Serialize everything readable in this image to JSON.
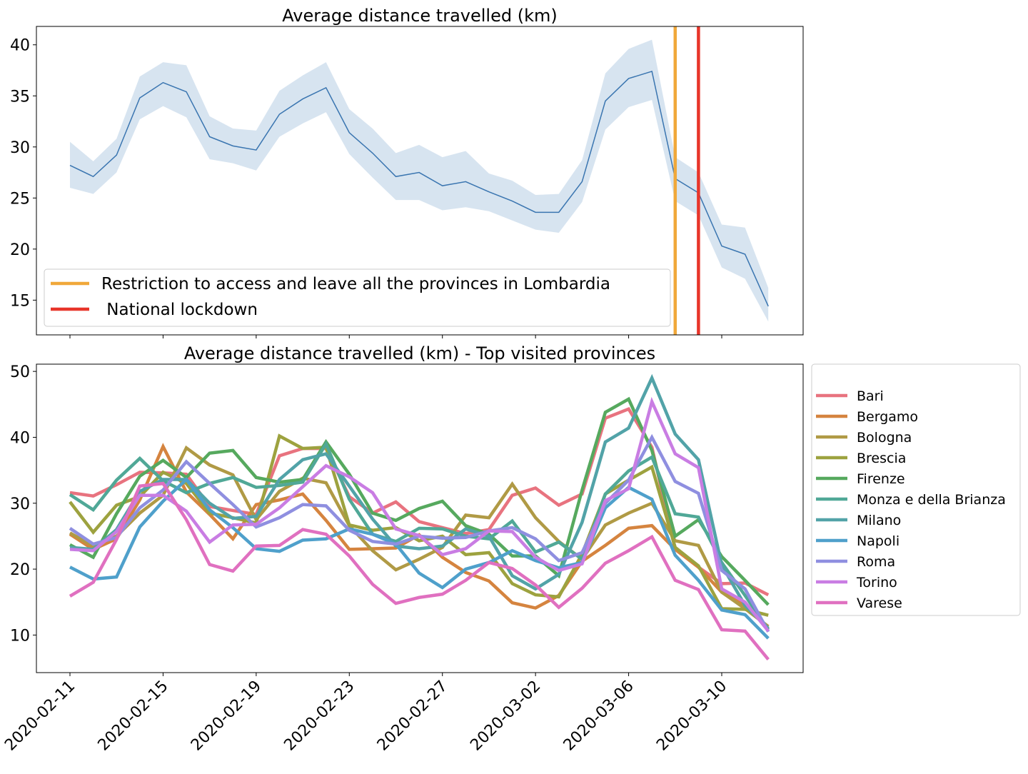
{
  "chart_data": [
    {
      "type": "line",
      "title": "Average distance travelled (km)",
      "x_start": "2020-02-11",
      "x_end": "2020-03-11",
      "x_tick_labels": [
        "2020-02-11",
        "2020-02-15",
        "2020-02-19",
        "2020-02-23",
        "2020-02-27",
        "2020-03-02",
        "2020-03-06",
        "2020-03-10"
      ],
      "ylim": [
        11.6,
        41.8
      ],
      "y_ticks": [
        15,
        20,
        25,
        30,
        35,
        40
      ],
      "grid": false,
      "line_color": "#3a75b0",
      "band_color": "#d5e3ef",
      "values": [
        28.2,
        27.1,
        29.2,
        34.8,
        36.3,
        35.4,
        31.0,
        30.1,
        29.7,
        33.2,
        34.7,
        35.8,
        31.4,
        29.4,
        27.1,
        27.5,
        26.2,
        26.6,
        25.6,
        24.7,
        23.6,
        23.6,
        26.6,
        34.5,
        36.7,
        37.4,
        26.9,
        25.5,
        20.3,
        19.5,
        14.4
      ],
      "band_upper": [
        30.5,
        28.6,
        30.8,
        36.9,
        38.3,
        38.0,
        33.0,
        31.8,
        31.6,
        35.5,
        37.0,
        38.3,
        33.7,
        31.8,
        29.4,
        30.2,
        29.0,
        29.6,
        27.4,
        26.7,
        25.3,
        25.4,
        28.7,
        37.2,
        39.6,
        40.5,
        29.0,
        27.5,
        22.4,
        22.1,
        16.2
      ],
      "band_lower": [
        26.0,
        25.4,
        27.5,
        32.7,
        34.0,
        32.9,
        28.8,
        28.4,
        27.7,
        31.0,
        32.3,
        33.4,
        29.3,
        27.0,
        24.8,
        24.8,
        23.8,
        24.1,
        23.7,
        22.8,
        21.9,
        21.6,
        24.6,
        31.7,
        33.9,
        34.6,
        24.7,
        23.3,
        18.2,
        17.1,
        12.9
      ],
      "vlines": [
        {
          "date": "2020-03-08",
          "label": "Restriction to access and leave all the provinces in Lombardia",
          "color": "#f0a83a"
        },
        {
          "date": "2020-03-09",
          "label": " National lockdown",
          "color": "#e8352a"
        }
      ],
      "legend_position": "lower-left"
    },
    {
      "type": "line",
      "title": "Average distance travelled (km) - Top visited provinces",
      "x_start": "2020-02-11",
      "x_end": "2020-03-11",
      "x_tick_labels": [
        "2020-02-11",
        "2020-02-15",
        "2020-02-19",
        "2020-02-23",
        "2020-02-27",
        "2020-03-02",
        "2020-03-06",
        "2020-03-10"
      ],
      "ylim": [
        4.3,
        51.1
      ],
      "y_ticks": [
        10,
        20,
        30,
        40,
        50
      ],
      "grid": false,
      "legend_position": "outside-right",
      "series": [
        {
          "name": "Bari",
          "color": "#e8737f",
          "values": [
            31.6,
            31.1,
            32.8,
            34.7,
            34.6,
            34.4,
            29.5,
            28.9,
            28.3,
            37.2,
            38.3,
            38.3,
            31,
            28.5,
            30.2,
            27.2,
            26.3,
            25.4,
            26,
            31.2,
            32.3,
            29.7,
            31.4,
            42.9,
            44.3,
            38.5,
            23,
            20.3,
            17.8,
            17.9,
            16.1
          ]
        },
        {
          "name": "Bergamo",
          "color": "#d5843f",
          "values": [
            25.3,
            23,
            24.6,
            30.5,
            38.6,
            31.7,
            28.3,
            24.6,
            29.8,
            30.5,
            31.4,
            27.4,
            23,
            23.1,
            23.2,
            25.2,
            21.8,
            19.5,
            18.2,
            14.9,
            14.1,
            16,
            21.2,
            23.6,
            26.2,
            26.6,
            23,
            20.3,
            16.5,
            14.5,
            11
          ]
        },
        {
          "name": "Bologna",
          "color": "#b09a45",
          "values": [
            25.5,
            23.5,
            25,
            28.5,
            31.2,
            38.4,
            35.8,
            34.3,
            27.5,
            31.8,
            33.8,
            33.1,
            26.6,
            22.8,
            19.9,
            21.5,
            23.3,
            28.2,
            27.8,
            32.9,
            27.8,
            24.2,
            21.5,
            26.7,
            28.5,
            30,
            24.3,
            23.6,
            16.5,
            14,
            11.3
          ]
        },
        {
          "name": "Brescia",
          "color": "#9da23f",
          "values": [
            30.2,
            25.6,
            29.7,
            31,
            34.7,
            33,
            28.5,
            27.8,
            27,
            40.2,
            38.3,
            38.5,
            26.7,
            25.9,
            26.3,
            24.3,
            25,
            22.2,
            22.5,
            17.8,
            16.1,
            15.8,
            22.3,
            31.4,
            33.5,
            35.5,
            23.3,
            20.5,
            14,
            13.9,
            13
          ]
        },
        {
          "name": "Firenze",
          "color": "#56a95e",
          "values": [
            23.7,
            21.8,
            28.4,
            34.1,
            36.5,
            33.9,
            37.6,
            38,
            33.9,
            33.2,
            33.6,
            39.3,
            34.4,
            28.5,
            27.4,
            29.2,
            30.3,
            26.6,
            25.3,
            22,
            22,
            19,
            32,
            43.8,
            45.8,
            38,
            25,
            27.5,
            21.9,
            18.3,
            14.6
          ]
        },
        {
          "name": "Monza e della Brianza",
          "color": "#50a897",
          "values": [
            31.3,
            29,
            33.5,
            36.8,
            33.4,
            31.6,
            33,
            33.9,
            32.4,
            32.7,
            33.2,
            39,
            30.6,
            25.3,
            24.2,
            26.2,
            26.1,
            25,
            24.6,
            27.3,
            22.6,
            24.1,
            21.5,
            31.4,
            34.9,
            37,
            28.4,
            27.9,
            21,
            16,
            10.8
          ]
        },
        {
          "name": "Milano",
          "color": "#52a3a8",
          "values": [
            23.3,
            23,
            26,
            31.8,
            33.6,
            33.6,
            30,
            27.7,
            28,
            33.6,
            36.6,
            37.5,
            32.6,
            27.6,
            23.5,
            23.1,
            23.5,
            26.1,
            25,
            19,
            17,
            19.2,
            27.1,
            39.3,
            41.4,
            49,
            40.5,
            36.6,
            20.6,
            14.5,
            11
          ]
        },
        {
          "name": "Napoli",
          "color": "#4fa0cb",
          "values": [
            20.3,
            18.5,
            18.8,
            26.4,
            30.3,
            33.6,
            29,
            26.3,
            23.1,
            22.7,
            24.4,
            24.6,
            26.1,
            25.3,
            23.8,
            19.4,
            17.2,
            20,
            21,
            22.8,
            21.3,
            20.2,
            21,
            29.3,
            32.4,
            30.6,
            22.1,
            18.3,
            13.8,
            13.1,
            9.5
          ]
        },
        {
          "name": "Roma",
          "color": "#8f8fe0",
          "values": [
            26.2,
            23.8,
            24.8,
            29.3,
            32,
            36.3,
            33,
            29.8,
            26.4,
            27.8,
            29.8,
            29.6,
            25.9,
            24.2,
            23.8,
            25,
            24.7,
            24.8,
            25.8,
            26.3,
            24.6,
            21.3,
            22.5,
            30,
            33.5,
            40,
            33.3,
            31.5,
            19.8,
            17,
            10.5
          ]
        },
        {
          "name": "Torino",
          "color": "#c97de3",
          "values": [
            23,
            22.8,
            25.7,
            31.2,
            31.2,
            28.8,
            24.1,
            26.7,
            26.8,
            29.3,
            32.5,
            35.7,
            34,
            31.6,
            26.1,
            25.1,
            22.2,
            23.1,
            25.8,
            25.7,
            21.8,
            19.8,
            20.8,
            30.4,
            32.2,
            45.4,
            37.5,
            35.4,
            17,
            15,
            10.6
          ]
        },
        {
          "name": "Varese",
          "color": "#e070c0",
          "values": [
            15.9,
            18,
            24.5,
            32.6,
            33,
            27.5,
            20.7,
            19.7,
            23.5,
            23.6,
            26,
            25.3,
            22,
            17.7,
            14.8,
            15.7,
            16.2,
            18.3,
            21,
            20.1,
            17.6,
            14.2,
            17.1,
            20.9,
            22.8,
            24.9,
            18.3,
            16.9,
            10.8,
            10.6,
            6.3
          ]
        }
      ]
    }
  ]
}
